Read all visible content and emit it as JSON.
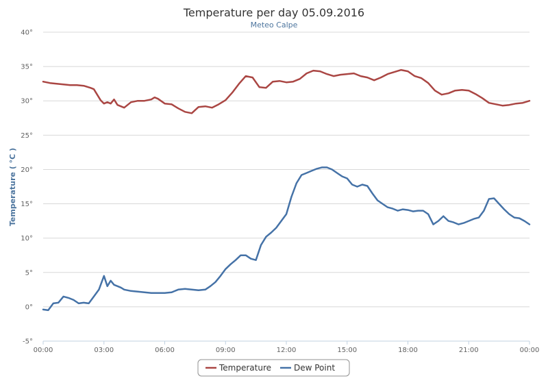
{
  "chart_data": {
    "type": "line",
    "title": "Temperature per day 05.09.2016",
    "subtitle": "Meteo Calpe",
    "ylabel": "Temperature ( °C )",
    "ylim": [
      -5,
      40
    ],
    "yticks": [
      -5,
      0,
      5,
      10,
      15,
      20,
      25,
      30,
      35,
      40
    ],
    "y_suffix": "°",
    "xlim": [
      "00:00",
      "24:00"
    ],
    "xtick_labels": [
      "00:00",
      "03:00",
      "06:00",
      "09:00",
      "12:00",
      "15:00",
      "18:00",
      "21:00",
      "00:00"
    ],
    "grid": true,
    "legend_position": "bottom-center",
    "series": [
      {
        "name": "Temperature",
        "color": "#aa4643",
        "x": [
          "00:00",
          "00:20",
          "00:40",
          "01:00",
          "01:20",
          "01:40",
          "02:00",
          "02:20",
          "02:30",
          "02:40",
          "02:50",
          "03:00",
          "03:10",
          "03:20",
          "03:30",
          "03:40",
          "04:00",
          "04:20",
          "04:40",
          "05:00",
          "05:20",
          "05:30",
          "05:40",
          "06:00",
          "06:20",
          "06:40",
          "07:00",
          "07:20",
          "07:40",
          "08:00",
          "08:20",
          "08:40",
          "09:00",
          "09:20",
          "09:40",
          "10:00",
          "10:20",
          "10:40",
          "11:00",
          "11:20",
          "11:40",
          "12:00",
          "12:20",
          "12:40",
          "13:00",
          "13:20",
          "13:40",
          "14:00",
          "14:20",
          "14:40",
          "15:00",
          "15:20",
          "15:40",
          "16:00",
          "16:20",
          "16:40",
          "17:00",
          "17:20",
          "17:40",
          "18:00",
          "18:20",
          "18:40",
          "19:00",
          "19:20",
          "19:40",
          "20:00",
          "20:20",
          "20:40",
          "21:00",
          "21:20",
          "21:40",
          "22:00",
          "22:20",
          "22:40",
          "23:00",
          "23:20",
          "23:40",
          "24:00"
        ],
        "y": [
          32.8,
          32.6,
          32.5,
          32.4,
          32.3,
          32.3,
          32.2,
          31.9,
          31.7,
          30.9,
          30.1,
          29.6,
          29.8,
          29.6,
          30.2,
          29.4,
          29.0,
          29.8,
          30.0,
          30.0,
          30.2,
          30.5,
          30.3,
          29.6,
          29.5,
          28.9,
          28.4,
          28.2,
          29.1,
          29.2,
          29.0,
          29.5,
          30.1,
          31.2,
          32.5,
          33.6,
          33.4,
          32.0,
          31.9,
          32.8,
          32.9,
          32.7,
          32.8,
          33.2,
          34.0,
          34.4,
          34.3,
          33.9,
          33.6,
          33.8,
          33.9,
          34.0,
          33.6,
          33.4,
          33.0,
          33.4,
          33.9,
          34.2,
          34.5,
          34.3,
          33.6,
          33.3,
          32.6,
          31.5,
          30.9,
          31.1,
          31.5,
          31.6,
          31.5,
          31.0,
          30.4,
          29.7,
          29.5,
          29.3,
          29.4,
          29.6,
          29.7,
          30.0
        ]
      },
      {
        "name": "Dew Point",
        "color": "#4572a7",
        "x": [
          "00:00",
          "00:15",
          "00:30",
          "00:45",
          "01:00",
          "01:15",
          "01:30",
          "01:45",
          "02:00",
          "02:15",
          "02:30",
          "02:45",
          "03:00",
          "03:10",
          "03:20",
          "03:30",
          "03:40",
          "03:50",
          "04:00",
          "04:20",
          "04:40",
          "05:00",
          "05:20",
          "05:40",
          "06:00",
          "06:20",
          "06:40",
          "07:00",
          "07:20",
          "07:40",
          "08:00",
          "08:15",
          "08:30",
          "08:45",
          "09:00",
          "09:15",
          "09:30",
          "09:45",
          "10:00",
          "10:15",
          "10:30",
          "10:45",
          "11:00",
          "11:15",
          "11:30",
          "11:45",
          "12:00",
          "12:15",
          "12:30",
          "12:45",
          "13:00",
          "13:15",
          "13:30",
          "13:45",
          "14:00",
          "14:15",
          "14:30",
          "14:45",
          "15:00",
          "15:15",
          "15:30",
          "15:45",
          "16:00",
          "16:15",
          "16:30",
          "16:45",
          "17:00",
          "17:15",
          "17:30",
          "17:45",
          "18:00",
          "18:15",
          "18:30",
          "18:45",
          "19:00",
          "19:15",
          "19:30",
          "19:45",
          "20:00",
          "20:15",
          "20:30",
          "20:45",
          "21:00",
          "21:15",
          "21:30",
          "21:45",
          "22:00",
          "22:15",
          "22:30",
          "22:45",
          "23:00",
          "23:15",
          "23:30",
          "23:45",
          "24:00"
        ],
        "y": [
          -0.4,
          -0.5,
          0.5,
          0.6,
          1.5,
          1.3,
          1.0,
          0.5,
          0.6,
          0.5,
          1.5,
          2.5,
          4.5,
          3.0,
          3.8,
          3.2,
          3.0,
          2.8,
          2.5,
          2.3,
          2.2,
          2.1,
          2.0,
          2.0,
          2.0,
          2.1,
          2.5,
          2.6,
          2.5,
          2.4,
          2.5,
          3.0,
          3.6,
          4.5,
          5.5,
          6.2,
          6.8,
          7.5,
          7.5,
          7.0,
          6.8,
          9.0,
          10.2,
          10.8,
          11.5,
          12.5,
          13.5,
          16.0,
          18.0,
          19.2,
          19.5,
          19.8,
          20.1,
          20.3,
          20.3,
          20.0,
          19.5,
          19.0,
          18.7,
          17.8,
          17.5,
          17.8,
          17.6,
          16.5,
          15.5,
          15.0,
          14.5,
          14.3,
          14.0,
          14.2,
          14.1,
          13.9,
          14.0,
          14.0,
          13.5,
          12.0,
          12.5,
          13.2,
          12.5,
          12.3,
          12.0,
          12.2,
          12.5,
          12.8,
          13.0,
          14.0,
          15.7,
          15.8,
          15.0,
          14.2,
          13.5,
          13.0,
          12.9,
          12.5,
          12.0
        ]
      }
    ]
  }
}
